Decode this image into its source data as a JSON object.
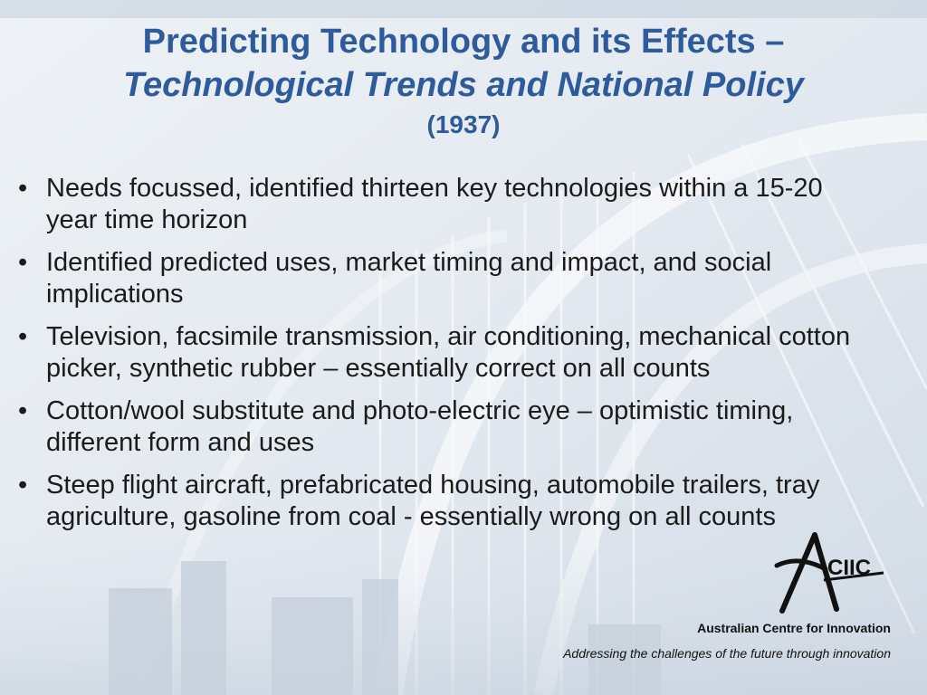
{
  "slide": {
    "title_line1": "Predicting Technology and its Effects –",
    "title_line2": "Technological Trends and National Policy",
    "title_line3": "(1937)",
    "bullet_symbol": "•",
    "bullets": [
      "Needs focussed, identified thirteen key technologies within a 15-20 year time horizon",
      "Identified predicted uses, market timing and impact, and social implications",
      "Television, facsimile transmission, air conditioning, mechanical cotton picker, synthetic rubber – essentially correct on all counts",
      "Cotton/wool substitute and photo-electric eye – optimistic timing, different form and uses",
      "Steep flight aircraft, prefabricated housing, automobile trailers, tray agriculture, gasoline from coal - essentially wrong on all counts"
    ]
  },
  "footer": {
    "logo_text": "CIIC",
    "org_name": "Australian Centre for Innovation",
    "tagline": "Addressing the challenges of the future through innovation"
  },
  "colors": {
    "title": "#2e5b9b",
    "body_text": "#1b1b1b",
    "background": "#dfe6ee"
  }
}
